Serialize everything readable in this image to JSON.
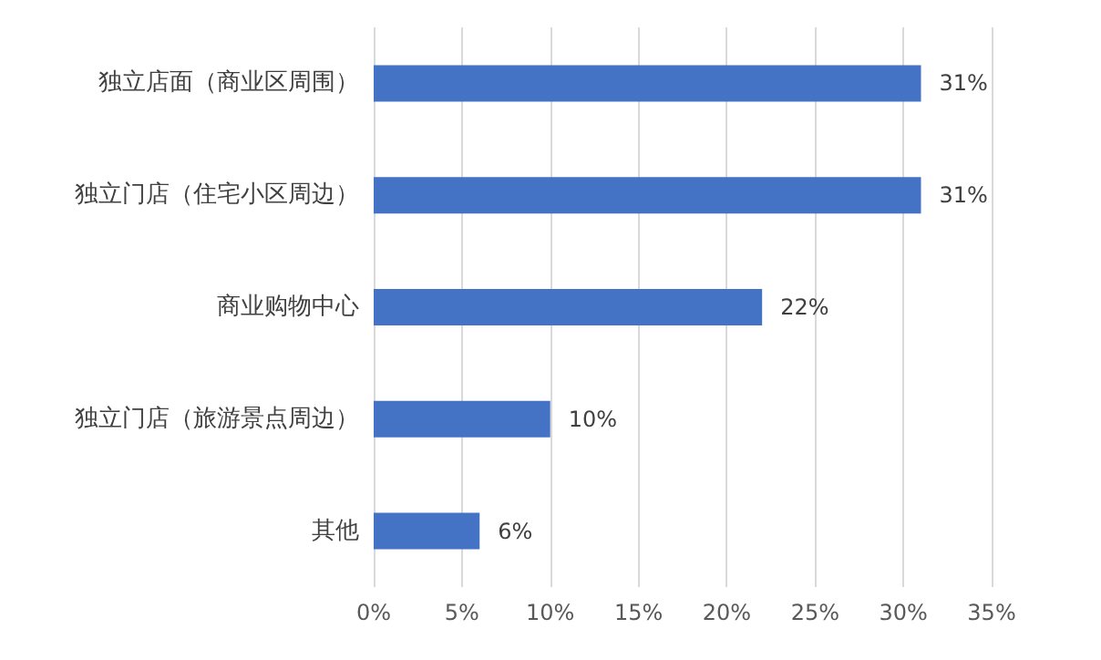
{
  "chart_data": {
    "type": "bar",
    "orientation": "horizontal",
    "categories": [
      "独立店面（商业区周围）",
      "独立门店（住宅小区周边）",
      "商业购物中心",
      "独立门店（旅游景点周边）",
      "其他"
    ],
    "values": [
      31,
      31,
      22,
      10,
      6
    ],
    "value_labels": [
      "31%",
      "31%",
      "22%",
      "10%",
      "6%"
    ],
    "color": "#4472c4",
    "xlim": [
      0,
      35
    ],
    "xticks": [
      {
        "value": 0,
        "label": "0%"
      },
      {
        "value": 5,
        "label": "5%"
      },
      {
        "value": 10,
        "label": "10%"
      },
      {
        "value": 15,
        "label": "15%"
      },
      {
        "value": 20,
        "label": "20%"
      },
      {
        "value": 25,
        "label": "25%"
      },
      {
        "value": 30,
        "label": "30%"
      },
      {
        "value": 35,
        "label": "35%"
      }
    ],
    "grid": "x"
  }
}
